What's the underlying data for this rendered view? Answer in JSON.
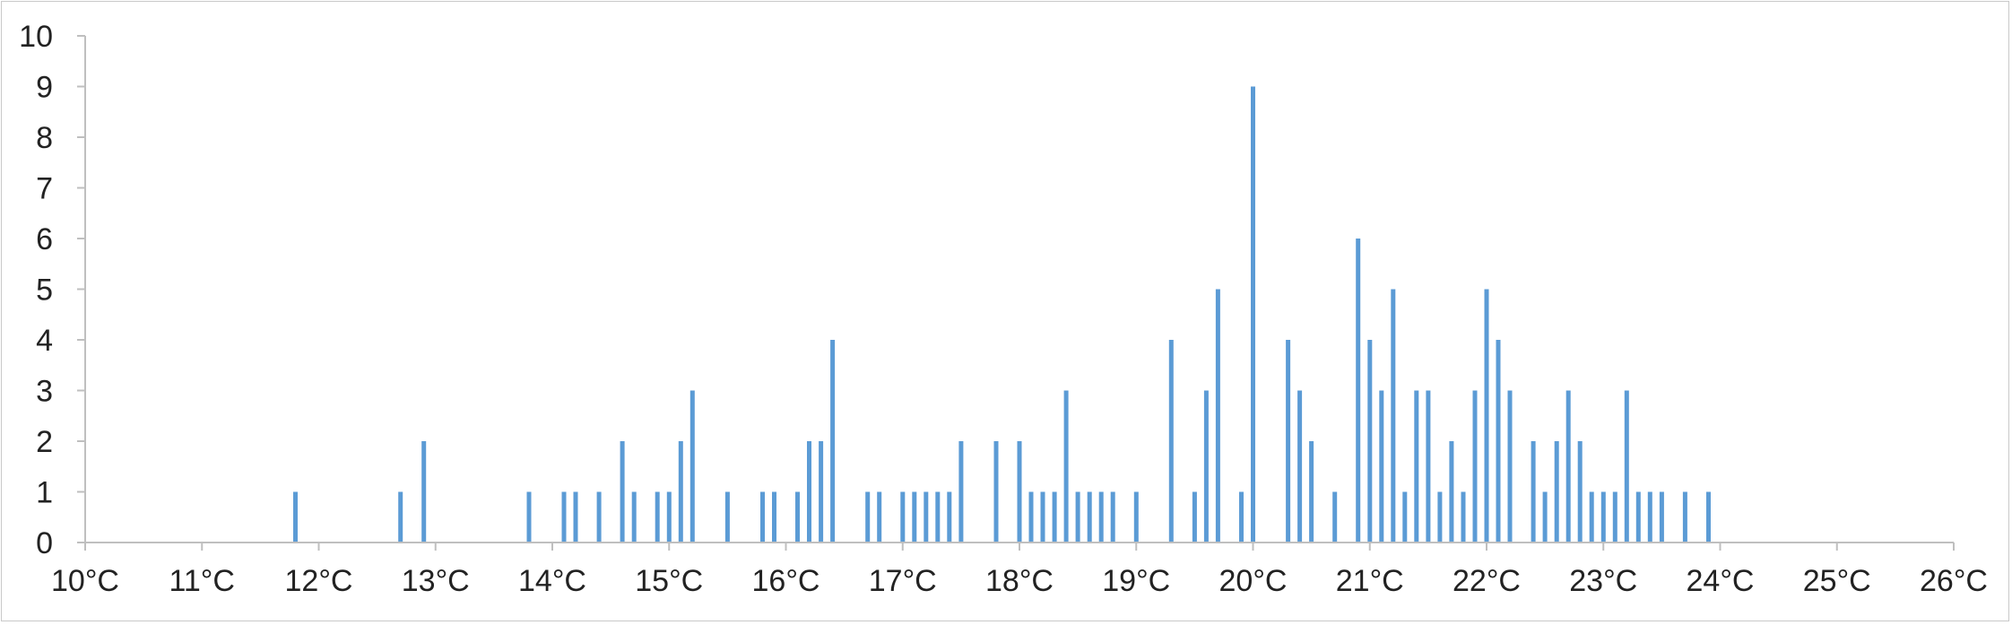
{
  "chart_data": {
    "type": "bar",
    "title": "",
    "xlabel": "",
    "ylabel": "",
    "bar_color": "#5b9bd5",
    "axis_color": "#bfbfbf",
    "grid": false,
    "legend": "none",
    "xlim": [
      10,
      26
    ],
    "ylim": [
      0,
      10
    ],
    "x_ticks": [
      10,
      11,
      12,
      13,
      14,
      15,
      16,
      17,
      18,
      19,
      20,
      21,
      22,
      23,
      24,
      25,
      26
    ],
    "x_tick_labels": [
      "10°C",
      "11°C",
      "12°C",
      "13°C",
      "14°C",
      "15°C",
      "16°C",
      "17°C",
      "18°C",
      "19°C",
      "20°C",
      "21°C",
      "22°C",
      "23°C",
      "24°C",
      "25°C",
      "26°C"
    ],
    "y_ticks": [
      0,
      1,
      2,
      3,
      4,
      5,
      6,
      7,
      8,
      9,
      10
    ],
    "y_tick_labels": [
      "0",
      "1",
      "2",
      "3",
      "4",
      "5",
      "6",
      "7",
      "8",
      "9",
      "10"
    ],
    "points": [
      {
        "x": 11.8,
        "y": 1
      },
      {
        "x": 12.7,
        "y": 1
      },
      {
        "x": 12.9,
        "y": 2
      },
      {
        "x": 13.8,
        "y": 1
      },
      {
        "x": 14.1,
        "y": 1
      },
      {
        "x": 14.2,
        "y": 1
      },
      {
        "x": 14.4,
        "y": 1
      },
      {
        "x": 14.6,
        "y": 2
      },
      {
        "x": 14.7,
        "y": 1
      },
      {
        "x": 14.9,
        "y": 1
      },
      {
        "x": 15.0,
        "y": 1
      },
      {
        "x": 15.1,
        "y": 2
      },
      {
        "x": 15.2,
        "y": 3
      },
      {
        "x": 15.5,
        "y": 1
      },
      {
        "x": 15.8,
        "y": 1
      },
      {
        "x": 15.9,
        "y": 1
      },
      {
        "x": 16.1,
        "y": 1
      },
      {
        "x": 16.2,
        "y": 2
      },
      {
        "x": 16.3,
        "y": 2
      },
      {
        "x": 16.4,
        "y": 4
      },
      {
        "x": 16.7,
        "y": 1
      },
      {
        "x": 16.8,
        "y": 1
      },
      {
        "x": 17.0,
        "y": 1
      },
      {
        "x": 17.1,
        "y": 1
      },
      {
        "x": 17.2,
        "y": 1
      },
      {
        "x": 17.3,
        "y": 1
      },
      {
        "x": 17.4,
        "y": 1
      },
      {
        "x": 17.5,
        "y": 2
      },
      {
        "x": 17.8,
        "y": 2
      },
      {
        "x": 18.0,
        "y": 2
      },
      {
        "x": 18.1,
        "y": 1
      },
      {
        "x": 18.2,
        "y": 1
      },
      {
        "x": 18.3,
        "y": 1
      },
      {
        "x": 18.4,
        "y": 3
      },
      {
        "x": 18.5,
        "y": 1
      },
      {
        "x": 18.6,
        "y": 1
      },
      {
        "x": 18.7,
        "y": 1
      },
      {
        "x": 18.8,
        "y": 1
      },
      {
        "x": 19.0,
        "y": 1
      },
      {
        "x": 19.3,
        "y": 4
      },
      {
        "x": 19.5,
        "y": 1
      },
      {
        "x": 19.6,
        "y": 3
      },
      {
        "x": 19.7,
        "y": 5
      },
      {
        "x": 19.9,
        "y": 1
      },
      {
        "x": 20.0,
        "y": 9
      },
      {
        "x": 20.3,
        "y": 4
      },
      {
        "x": 20.4,
        "y": 3
      },
      {
        "x": 20.5,
        "y": 2
      },
      {
        "x": 20.7,
        "y": 1
      },
      {
        "x": 20.9,
        "y": 6
      },
      {
        "x": 21.0,
        "y": 4
      },
      {
        "x": 21.1,
        "y": 3
      },
      {
        "x": 21.2,
        "y": 5
      },
      {
        "x": 21.3,
        "y": 1
      },
      {
        "x": 21.4,
        "y": 3
      },
      {
        "x": 21.5,
        "y": 3
      },
      {
        "x": 21.6,
        "y": 1
      },
      {
        "x": 21.7,
        "y": 2
      },
      {
        "x": 21.8,
        "y": 1
      },
      {
        "x": 21.9,
        "y": 3
      },
      {
        "x": 22.0,
        "y": 5
      },
      {
        "x": 22.1,
        "y": 4
      },
      {
        "x": 22.2,
        "y": 3
      },
      {
        "x": 22.4,
        "y": 2
      },
      {
        "x": 22.5,
        "y": 1
      },
      {
        "x": 22.6,
        "y": 2
      },
      {
        "x": 22.7,
        "y": 3
      },
      {
        "x": 22.8,
        "y": 2
      },
      {
        "x": 22.9,
        "y": 1
      },
      {
        "x": 23.0,
        "y": 1
      },
      {
        "x": 23.1,
        "y": 1
      },
      {
        "x": 23.2,
        "y": 3
      },
      {
        "x": 23.3,
        "y": 1
      },
      {
        "x": 23.4,
        "y": 1
      },
      {
        "x": 23.5,
        "y": 1
      },
      {
        "x": 23.7,
        "y": 1
      },
      {
        "x": 23.9,
        "y": 1
      }
    ]
  }
}
